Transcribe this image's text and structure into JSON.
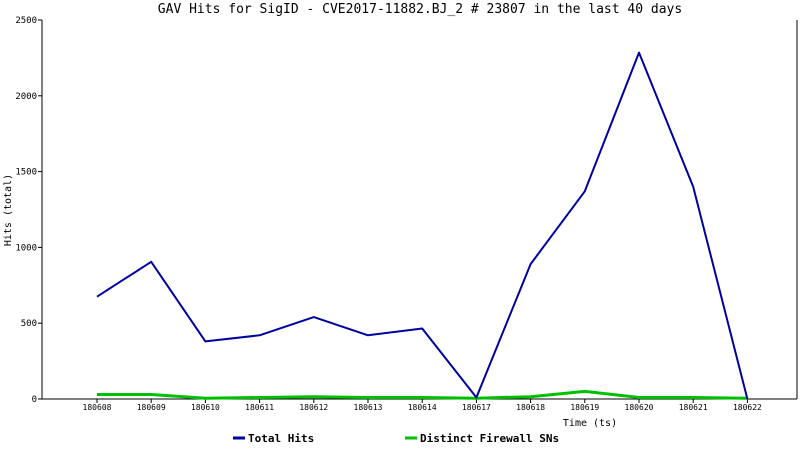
{
  "chart_data": {
    "type": "line",
    "title": "GAV Hits for SigID - CVE2017-11882.BJ_2 # 23807 in the last 40 days",
    "xlabel": "Time (ts)",
    "ylabel": "Hits (total)",
    "categories": [
      "180608",
      "180609",
      "180610",
      "180611",
      "180612",
      "180613",
      "180614",
      "180617",
      "180618",
      "180619",
      "180620",
      "180621",
      "180622"
    ],
    "ylim": [
      0,
      2500
    ],
    "yticks": [
      "0",
      "500",
      "1000",
      "1500",
      "2000",
      "2500"
    ],
    "grid": false,
    "legend_position": "bottom",
    "series": [
      {
        "name": "Total Hits",
        "color": "#0000a0",
        "values": [
          675,
          905,
          380,
          420,
          540,
          420,
          465,
          10,
          890,
          1370,
          2285,
          1400,
          0
        ]
      },
      {
        "name": "Distinct Firewall SNs",
        "color": "#00c000",
        "values": [
          30,
          30,
          5,
          10,
          15,
          10,
          10,
          5,
          15,
          50,
          10,
          10,
          5
        ]
      }
    ]
  }
}
